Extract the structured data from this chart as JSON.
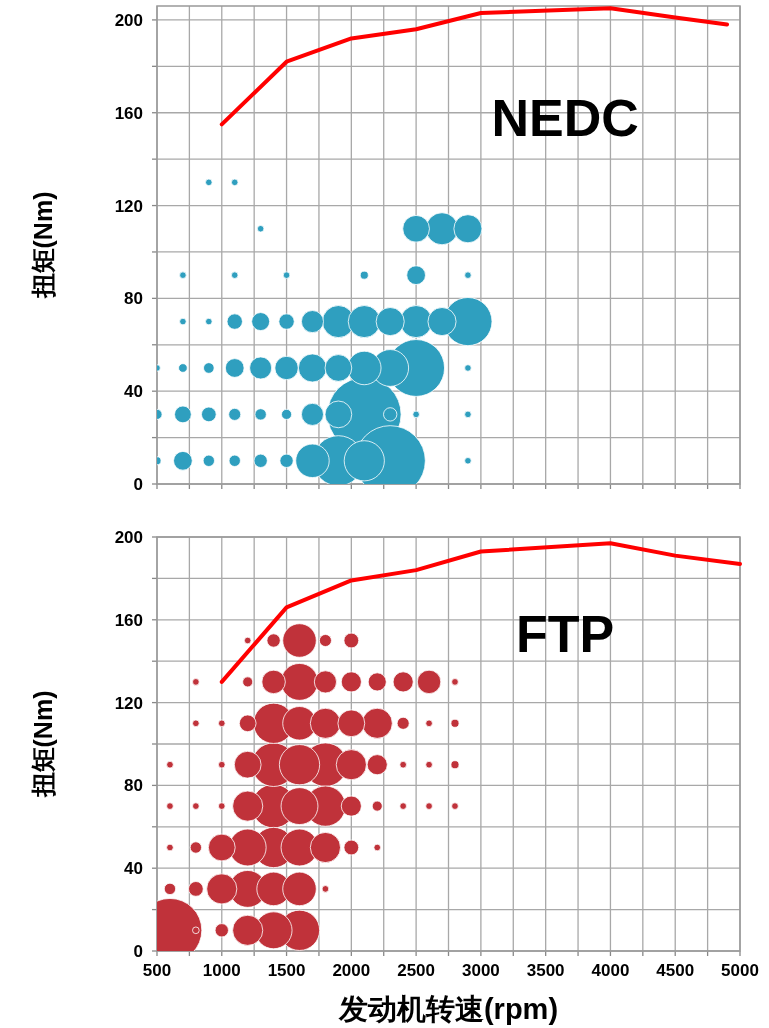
{
  "chart_data": [
    {
      "type": "bubble",
      "title": "NEDC",
      "ylabel": "扭矩(Nm)",
      "xlim": [
        500,
        5000
      ],
      "ylim": [
        0,
        206
      ],
      "tick_labels": "y",
      "grid": true,
      "xticks": [
        500,
        {
          "value": 750,
          "label": null
        },
        1000,
        {
          "value": 1250,
          "label": null
        },
        1500,
        {
          "value": 1750,
          "label": null
        },
        2000,
        {
          "value": 2250,
          "label": null
        },
        2500,
        {
          "value": 2750,
          "label": null
        },
        3000,
        {
          "value": 3250,
          "label": null
        },
        3500,
        {
          "value": 3750,
          "label": null
        },
        4000,
        {
          "value": 4250,
          "label": null
        },
        4500,
        {
          "value": 4750,
          "label": null
        },
        5000
      ],
      "yticks": [
        0,
        {
          "value": 20,
          "label": null
        },
        40,
        {
          "value": 60,
          "label": null
        },
        80,
        {
          "value": 100,
          "label": null
        },
        120,
        {
          "value": 140,
          "label": null
        },
        160,
        {
          "value": 180,
          "label": null
        },
        200
      ],
      "series": [
        {
          "type": "bubble",
          "color": "#2f9fbf",
          "x": [
            500,
            700,
            900,
            1100,
            1300,
            1500,
            1700,
            1900,
            2100,
            2300,
            2900,
            500,
            700,
            900,
            1100,
            1300,
            1500,
            1700,
            1900,
            2100,
            2300,
            2500,
            2900,
            500,
            700,
            900,
            1100,
            1300,
            1500,
            1700,
            1900,
            2100,
            2300,
            2500,
            2900,
            700,
            900,
            1100,
            1300,
            1500,
            1700,
            1900,
            2100,
            2300,
            2500,
            2700,
            2900,
            700,
            1100,
            1500,
            2100,
            2500,
            2900,
            1300,
            2500,
            2700,
            2900,
            900,
            1100
          ],
          "values": [
            10,
            10,
            10,
            10,
            10,
            10,
            10,
            10,
            10,
            10,
            10,
            30,
            30,
            30,
            30,
            30,
            30,
            30,
            30,
            30,
            30,
            30,
            30,
            50,
            50,
            50,
            50,
            50,
            50,
            50,
            50,
            50,
            50,
            50,
            50,
            70,
            70,
            70,
            70,
            70,
            70,
            70,
            70,
            70,
            70,
            70,
            70,
            90,
            90,
            90,
            90,
            90,
            90,
            110,
            110,
            110,
            110,
            130,
            130
          ],
          "sizes": [
            0.012,
            0.065,
            0.024,
            0.024,
            0.033,
            0.033,
            0.207,
            0.465,
            0.298,
            0.911,
            0.008,
            0.019,
            0.052,
            0.04,
            0.027,
            0.024,
            0.019,
            0.09,
            0.132,
            1,
            0.033,
            0.008,
            0.008,
            0.008,
            0.014,
            0.021,
            0.065,
            0.09,
            0.101,
            0.146,
            0.132,
            0.207,
            0.25,
            0.597,
            0.008,
            0.008,
            0.008,
            0.044,
            0.06,
            0.044,
            0.09,
            0.19,
            0.19,
            0.146,
            0.19,
            0.146,
            0.428,
            0.008,
            0.008,
            0.008,
            0.012,
            0.065,
            0.008,
            0.008,
            0.132,
            0.19,
            0.146,
            0.008,
            0.008
          ]
        },
        {
          "type": "line",
          "color": "#ff0000",
          "x": [
            1000,
            1500,
            2000,
            2500,
            3000,
            4000,
            4500,
            4900
          ],
          "values": [
            155,
            182,
            192,
            196,
            203,
            205,
            201,
            198
          ]
        }
      ]
    },
    {
      "type": "bubble",
      "title": "FTP",
      "ylabel": "扭矩(Nm)",
      "xlabel": "发动机转速(rpm)",
      "xlim": [
        500,
        5000
      ],
      "ylim": [
        0,
        200
      ],
      "grid": true,
      "xticks": [
        500,
        {
          "value": 750,
          "label": null
        },
        1000,
        {
          "value": 1250,
          "label": null
        },
        1500,
        {
          "value": 1750,
          "label": null
        },
        2000,
        {
          "value": 2250,
          "label": null
        },
        2500,
        {
          "value": 2750,
          "label": null
        },
        3000,
        {
          "value": 3250,
          "label": null
        },
        3500,
        {
          "value": 3750,
          "label": null
        },
        4000,
        {
          "value": 4250,
          "label": null
        },
        4500,
        {
          "value": 4750,
          "label": null
        },
        5000
      ],
      "yticks": [
        0,
        {
          "value": 20,
          "label": null
        },
        40,
        {
          "value": 60,
          "label": null
        },
        80,
        {
          "value": 100,
          "label": null
        },
        120,
        {
          "value": 140,
          "label": null
        },
        160,
        {
          "value": 180,
          "label": null
        },
        200
      ],
      "series": [
        {
          "type": "bubble",
          "color": "#c0323a",
          "x": [
            600,
            800,
            1000,
            1200,
            1400,
            1600,
            600,
            800,
            1000,
            1200,
            1400,
            1600,
            1800,
            600,
            800,
            1000,
            1200,
            1400,
            1600,
            1800,
            2000,
            2200,
            600,
            800,
            1000,
            1200,
            1400,
            1600,
            1800,
            2000,
            2200,
            2400,
            2600,
            2800,
            600,
            1000,
            1200,
            1400,
            1600,
            1800,
            2000,
            2200,
            2400,
            2600,
            2800,
            800,
            1000,
            1200,
            1400,
            1600,
            1800,
            2000,
            2200,
            2400,
            2600,
            2800,
            800,
            1200,
            1400,
            1600,
            1800,
            2000,
            2200,
            2400,
            2600,
            2800,
            1200,
            1400,
            1600,
            1800,
            2000
          ],
          "values": [
            10,
            10,
            10,
            10,
            10,
            10,
            30,
            30,
            30,
            30,
            30,
            30,
            30,
            50,
            50,
            50,
            50,
            50,
            50,
            50,
            50,
            50,
            70,
            70,
            70,
            70,
            70,
            70,
            70,
            70,
            70,
            70,
            70,
            70,
            90,
            90,
            90,
            90,
            90,
            90,
            90,
            90,
            90,
            90,
            90,
            110,
            110,
            110,
            110,
            110,
            110,
            110,
            110,
            110,
            110,
            110,
            130,
            130,
            130,
            130,
            130,
            130,
            130,
            130,
            130,
            130,
            150,
            150,
            150,
            150,
            150
          ],
          "sizes": [
            1,
            0.011,
            0.044,
            0.224,
            0.335,
            0.399,
            0.032,
            0.054,
            0.224,
            0.335,
            0.277,
            0.277,
            0.011,
            0.011,
            0.032,
            0.177,
            0.335,
            0.399,
            0.335,
            0.224,
            0.054,
            0.011,
            0.011,
            0.011,
            0.011,
            0.224,
            0.468,
            0.335,
            0.399,
            0.1,
            0.025,
            0.011,
            0.011,
            0.011,
            0.011,
            0.011,
            0.177,
            0.468,
            0.399,
            0.468,
            0.224,
            0.1,
            0.011,
            0.011,
            0.016,
            0.011,
            0.011,
            0.069,
            0.399,
            0.277,
            0.224,
            0.177,
            0.224,
            0.036,
            0.011,
            0.016,
            0.011,
            0.025,
            0.136,
            0.335,
            0.121,
            0.1,
            0.081,
            0.1,
            0.136,
            0.011,
            0.011,
            0.044,
            0.277,
            0.036,
            0.054
          ]
        },
        {
          "type": "line",
          "color": "#ff0000",
          "x": [
            1000,
            1500,
            2000,
            2500,
            3000,
            4000,
            4500,
            5000
          ],
          "values": [
            130,
            166,
            179,
            184,
            193,
            197,
            191,
            187
          ]
        }
      ]
    }
  ]
}
